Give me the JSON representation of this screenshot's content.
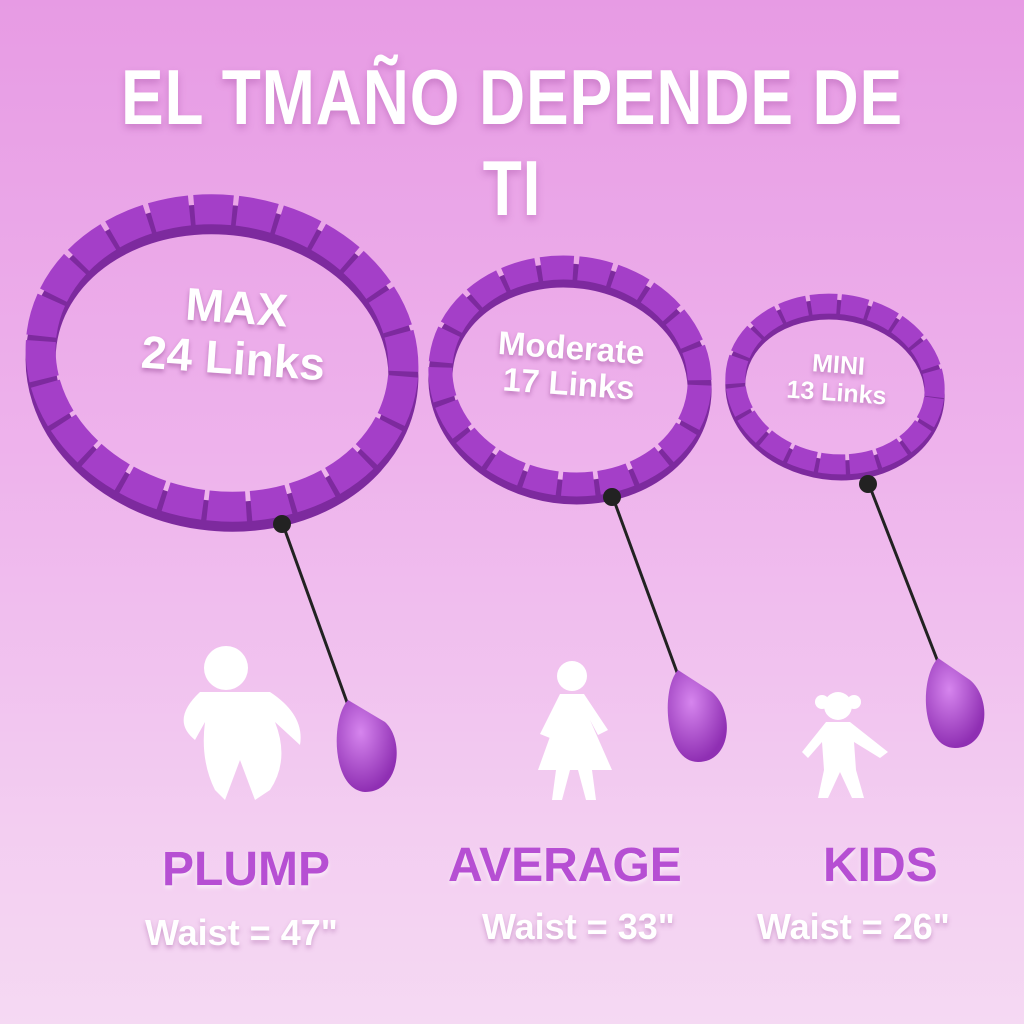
{
  "title": "EL TMAÑO DEPENDE DE TI",
  "colors": {
    "hoop": "#a43fc8",
    "label": "#b64fd3",
    "background_top": "#e79be4",
    "background_bottom": "#f5d9f3"
  },
  "products": [
    {
      "size_line1": "MAX",
      "size_line2": "24 Links",
      "category": "PLUMP",
      "waist": "Waist = 47\"",
      "figure_icon": "plump-person-icon"
    },
    {
      "size_line1": "Moderate",
      "size_line2": "17 Links",
      "category": "AVERAGE",
      "waist": "Waist = 33\"",
      "figure_icon": "woman-icon"
    },
    {
      "size_line1": "MINI",
      "size_line2": "13 Links",
      "category": "KIDS",
      "waist": "Waist = 26\"",
      "figure_icon": "child-icon"
    }
  ]
}
